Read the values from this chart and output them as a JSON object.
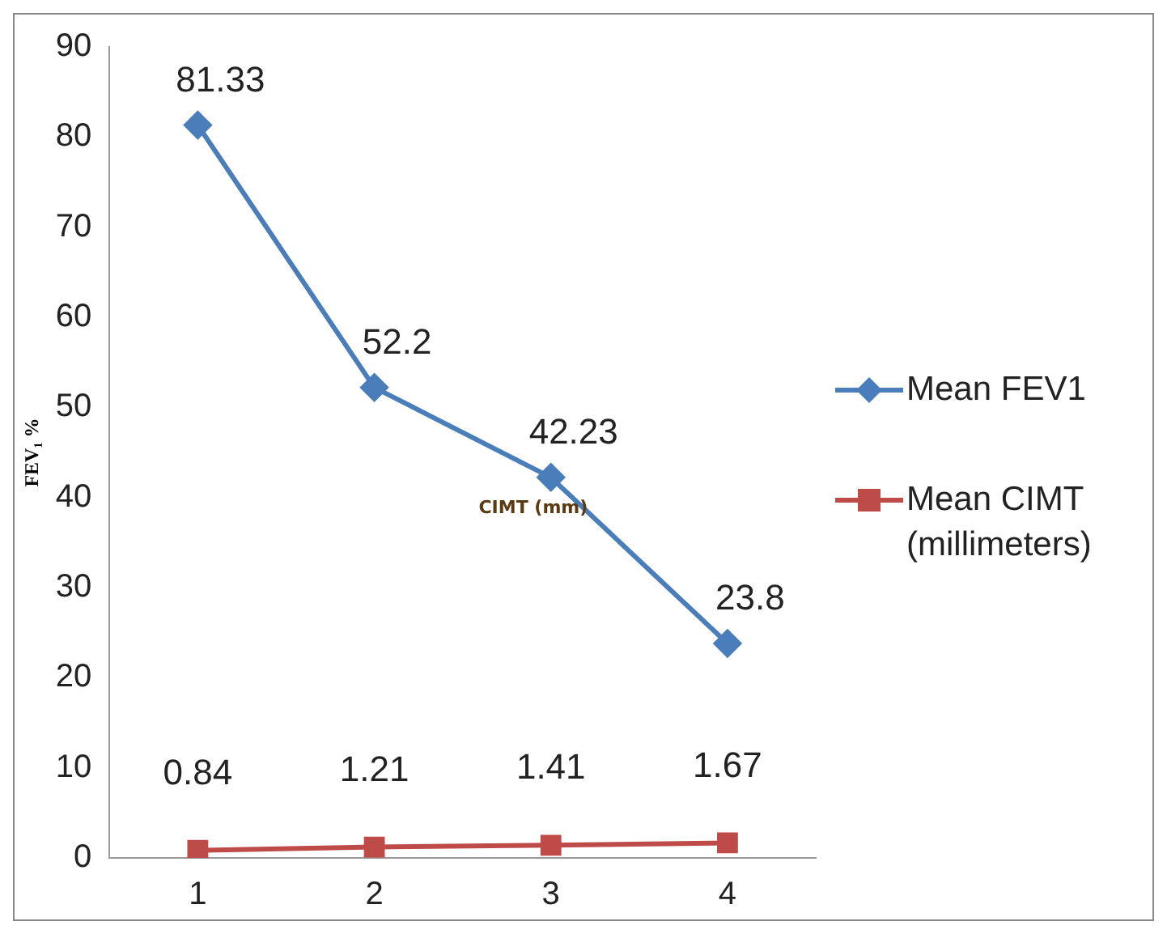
{
  "chart_data": {
    "type": "line",
    "ylabel": "FEV₁ %",
    "categories": [
      "1",
      "2",
      "3",
      "4"
    ],
    "series": [
      {
        "name": "Mean FEV1",
        "color": "#4a7ebb",
        "marker": "diamond",
        "values": [
          81.33,
          52.2,
          42.23,
          23.8
        ]
      },
      {
        "name": "Mean CIMT (millimeters)",
        "color": "#be4b48",
        "marker": "square",
        "values": [
          0.84,
          1.21,
          1.41,
          1.67
        ]
      }
    ],
    "ylim": [
      0,
      90
    ],
    "yticks": [
      0,
      10,
      20,
      30,
      40,
      50,
      60,
      70,
      80,
      90
    ],
    "grid": false,
    "legend": "right",
    "data_labels": true,
    "annotations": [
      "CIMT (mm)"
    ]
  }
}
